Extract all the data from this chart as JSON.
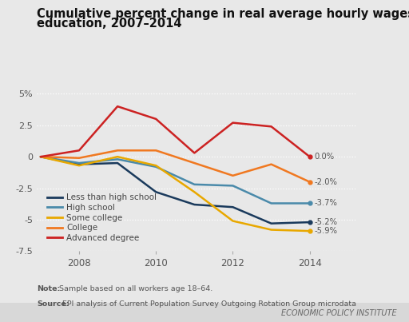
{
  "title_line1": "Cumulative percent change in real average hourly wages, by",
  "title_line2": "education, 2007–2014",
  "years": [
    2007,
    2008,
    2009,
    2010,
    2011,
    2012,
    2013,
    2014
  ],
  "series": [
    {
      "name": "Less than high school",
      "values": [
        0.0,
        -0.6,
        -0.5,
        -2.8,
        -3.8,
        -4.0,
        -5.3,
        -5.2
      ],
      "color": "#1a3a5c",
      "label_val": "-5.2%"
    },
    {
      "name": "High school",
      "values": [
        0.0,
        -0.5,
        -0.2,
        -0.8,
        -2.2,
        -2.3,
        -3.7,
        -3.7
      ],
      "color": "#4a8aaa",
      "label_val": "-3.7%"
    },
    {
      "name": "Some college",
      "values": [
        0.0,
        -0.7,
        0.0,
        -0.7,
        -2.8,
        -5.1,
        -5.8,
        -5.9
      ],
      "color": "#e8a800",
      "label_val": "-5.9%"
    },
    {
      "name": "College",
      "values": [
        0.0,
        -0.1,
        0.5,
        0.5,
        -0.5,
        -1.5,
        -0.6,
        -2.0
      ],
      "color": "#f07820",
      "label_val": "-2.0%"
    },
    {
      "name": "Advanced degree",
      "values": [
        0.0,
        0.5,
        4.0,
        3.0,
        0.3,
        2.7,
        2.4,
        0.0
      ],
      "color": "#cc2222",
      "label_val": "0.0%"
    }
  ],
  "ylim": [
    -7.5,
    5.8
  ],
  "yticks": [
    -7.5,
    -5.0,
    -2.5,
    0.0,
    2.5,
    5.0
  ],
  "ytick_labels": [
    "-7.5",
    "-5",
    "-2.5",
    "0",
    "2.5",
    "5%"
  ],
  "xlim_left": 2006.9,
  "xlim_right": 2015.2,
  "background_color": "#e8e8e8",
  "note_bold": "Note:",
  "note_regular": " Sample based on all workers age 18–64.",
  "source_bold": "Source:",
  "source_regular": " EPI analysis of Current Population Survey Outgoing Rotation Group microdata",
  "footer": "ECONOMIC POLICY INSTITUTE"
}
